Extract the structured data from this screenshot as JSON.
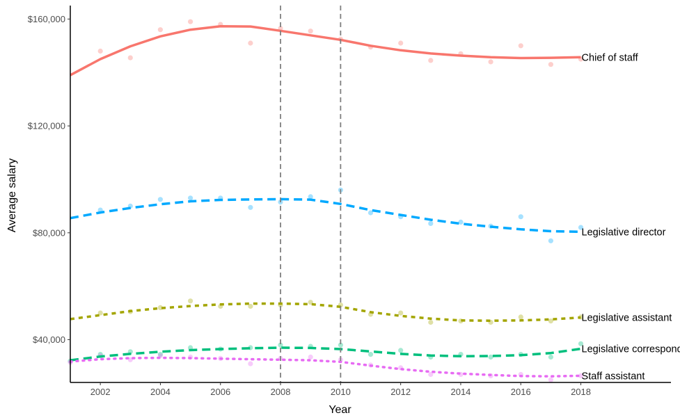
{
  "chart_data": {
    "type": "scatter",
    "xlabel": "Year",
    "ylabel": "Average salary",
    "xlim": [
      2001,
      2021
    ],
    "ylim": [
      24000,
      164000
    ],
    "x_ticks": [
      2002,
      2004,
      2006,
      2008,
      2010,
      2012,
      2014,
      2016,
      2018
    ],
    "x_tick_labels": [
      "2002",
      "2004",
      "2006",
      "2008",
      "2010",
      "2012",
      "2014",
      "2016",
      "2018"
    ],
    "y_ticks": [
      40000,
      80000,
      120000,
      160000
    ],
    "y_tick_labels": [
      "$40,000",
      "$80,000",
      "$120,000",
      "$160,000"
    ],
    "reference_lines_x": [
      2008,
      2010
    ],
    "grid": false,
    "legend": "none (series labelled directly at line ends)",
    "series": [
      {
        "name": "Chief of staff",
        "color": "#F8766D",
        "dash": "solid",
        "x": [
          2002,
          2003,
          2004,
          2005,
          2006,
          2007,
          2008,
          2009,
          2010,
          2011,
          2012,
          2013,
          2014,
          2015,
          2016,
          2017,
          2018
        ],
        "y": [
          148000,
          145500,
          156000,
          159000,
          158000,
          151000,
          156500,
          155500,
          152500,
          149500,
          151000,
          144500,
          147000,
          144000,
          150000,
          143000,
          145000
        ],
        "trend_x": [
          2001,
          2002,
          2003,
          2004,
          2005,
          2006,
          2007,
          2008,
          2009,
          2010,
          2011,
          2012,
          2013,
          2014,
          2015,
          2016,
          2017,
          2018
        ],
        "trend_y": [
          139000,
          145000,
          149800,
          153500,
          156000,
          157300,
          157200,
          155600,
          153900,
          152200,
          150000,
          148300,
          147100,
          146300,
          145700,
          145400,
          145500,
          145700
        ]
      },
      {
        "name": "Legislative director",
        "color": "#00A9FF",
        "dash": "longdash",
        "x": [
          2002,
          2003,
          2004,
          2005,
          2006,
          2007,
          2008,
          2009,
          2010,
          2011,
          2012,
          2013,
          2014,
          2015,
          2016,
          2017,
          2018
        ],
        "y": [
          88500,
          90000,
          92500,
          93000,
          93000,
          89500,
          91500,
          93500,
          96000,
          87500,
          86000,
          83500,
          84000,
          82500,
          86000,
          77000,
          82000
        ],
        "trend_x": [
          2001,
          2002,
          2003,
          2004,
          2005,
          2006,
          2007,
          2008,
          2009,
          2010,
          2011,
          2012,
          2013,
          2014,
          2015,
          2016,
          2017,
          2018
        ],
        "trend_y": [
          85500,
          87600,
          89300,
          90700,
          91800,
          92300,
          92500,
          92600,
          92400,
          90800,
          88500,
          86700,
          84900,
          83400,
          82300,
          81300,
          80600,
          80400
        ]
      },
      {
        "name": "Legislative assistant",
        "color": "#A3A500",
        "dash": "shortdash",
        "x": [
          2002,
          2003,
          2004,
          2005,
          2006,
          2007,
          2008,
          2009,
          2010,
          2011,
          2012,
          2013,
          2014,
          2015,
          2016,
          2017,
          2018
        ],
        "y": [
          50000,
          50500,
          52000,
          54500,
          52500,
          52500,
          53000,
          54000,
          53000,
          49500,
          50000,
          46500,
          47000,
          46500,
          48500,
          47000,
          48500
        ],
        "trend_x": [
          2001,
          2002,
          2003,
          2004,
          2005,
          2006,
          2007,
          2008,
          2009,
          2010,
          2011,
          2012,
          2013,
          2014,
          2015,
          2016,
          2017,
          2018
        ],
        "trend_y": [
          47700,
          49200,
          50700,
          51800,
          52600,
          53200,
          53500,
          53500,
          53300,
          52300,
          50300,
          48900,
          47900,
          47200,
          47100,
          47200,
          47600,
          48300
        ]
      },
      {
        "name": "Legislative correspondent",
        "color": "#00BF7D",
        "dash": "longdash",
        "x": [
          2001,
          2002,
          2003,
          2004,
          2005,
          2006,
          2007,
          2008,
          2009,
          2010,
          2011,
          2012,
          2013,
          2014,
          2015,
          2016,
          2017,
          2018
        ],
        "y": [
          32000,
          34500,
          35500,
          34500,
          37000,
          36500,
          37000,
          38000,
          37500,
          38000,
          34500,
          36000,
          33500,
          34500,
          33500,
          34500,
          33500,
          38500
        ],
        "trend_x": [
          2001,
          2002,
          2003,
          2004,
          2005,
          2006,
          2007,
          2008,
          2009,
          2010,
          2011,
          2012,
          2013,
          2014,
          2015,
          2016,
          2017,
          2018
        ],
        "trend_y": [
          32300,
          33700,
          34700,
          35500,
          36100,
          36500,
          36800,
          37000,
          36900,
          36500,
          35600,
          34700,
          34100,
          33800,
          33900,
          34200,
          35000,
          36600
        ]
      },
      {
        "name": "Staff assistant",
        "color": "#E76BF3",
        "dash": "dotted",
        "x": [
          2001,
          2002,
          2003,
          2004,
          2005,
          2006,
          2007,
          2008,
          2009,
          2010,
          2011,
          2012,
          2013,
          2014,
          2015,
          2016,
          2017,
          2018
        ],
        "y": [
          31500,
          34000,
          32500,
          34000,
          33500,
          33000,
          31000,
          33000,
          33500,
          32500,
          30500,
          29500,
          27000,
          27000,
          26500,
          27000,
          25000,
          26500
        ],
        "trend_x": [
          2001,
          2002,
          2003,
          2004,
          2005,
          2006,
          2007,
          2008,
          2009,
          2010,
          2011,
          2012,
          2013,
          2014,
          2015,
          2016,
          2017,
          2018
        ],
        "trend_y": [
          31800,
          32700,
          33100,
          33200,
          33100,
          32900,
          32700,
          32500,
          32300,
          31700,
          30300,
          29000,
          28000,
          27300,
          26800,
          26400,
          26300,
          26500
        ]
      }
    ]
  }
}
